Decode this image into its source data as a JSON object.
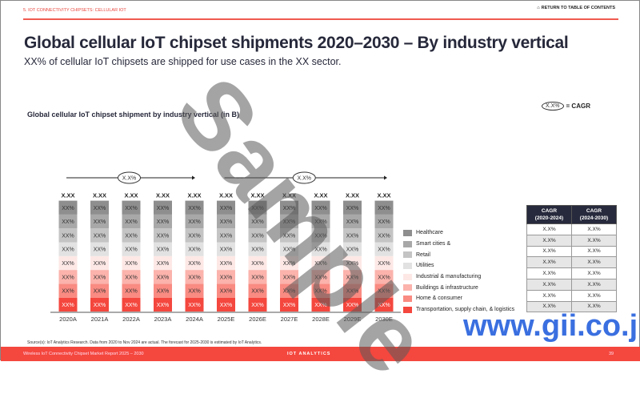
{
  "header": {
    "section": "5. IOT CONNECTIVITY CHIPSETS: CELLULAR IOT",
    "toc": "RETURN TO TABLE OF CONTENTS"
  },
  "title": "Global cellular IoT chipset shipments 2020–2030 – By industry vertical",
  "subtitle": "XX% of cellular IoT chipsets are shipped for use cases in the XX sector.",
  "cagr_key": {
    "oval": "X.X%",
    "label": "= CAGR"
  },
  "chart_data": {
    "type": "bar",
    "stacked": true,
    "title": "Global cellular IoT chipset shipment by industry vertical (in B)",
    "categories": [
      "2020A",
      "2021A",
      "2022A",
      "2023A",
      "2024A",
      "2025E",
      "2026E",
      "2027E",
      "2028E",
      "2029E",
      "2030E"
    ],
    "totals_label": "X.XX",
    "segment_label": "XX%",
    "cagr_arrows": [
      {
        "from": "2020A",
        "to": "2024A",
        "label": "X.X%"
      },
      {
        "from": "2025E",
        "to": "2030E",
        "label": "X.X%"
      }
    ],
    "series": [
      {
        "name": "Transportation, supply chain, & logistics",
        "color": "#f4473e"
      },
      {
        "name": "Home & consumer",
        "color": "#f98b82"
      },
      {
        "name": "Buildings & infrastructure",
        "color": "#fbb3ac"
      },
      {
        "name": "Industrial & manufacturing",
        "color": "#fde8e6"
      },
      {
        "name": "Utilities",
        "color": "#e2e2e2"
      },
      {
        "name": "Retail",
        "color": "#c4c4c4"
      },
      {
        "name": "Smart cities &",
        "color": "#a8a8a8"
      },
      {
        "name": "Healthcare",
        "color": "#8e8e8e"
      }
    ],
    "legend": "right"
  },
  "table": {
    "headers": [
      "CAGR\n(2020-2024)",
      "CAGR\n(2024-2030)"
    ],
    "rows": [
      [
        "X.X%",
        "X.X%"
      ],
      [
        "X.X%",
        "X.X%"
      ],
      [
        "X.X%",
        "X.X%"
      ],
      [
        "X.X%",
        "X.X%"
      ],
      [
        "X.X%",
        "X.X%"
      ],
      [
        "X.X%",
        "X.X%"
      ],
      [
        "X.X%",
        "X.X%"
      ],
      [
        "X.X%",
        "X.X%"
      ]
    ]
  },
  "source": "Source(s): IoT Analytics Research. Data from 2020 to Nov 2024 are actual. The forecast for 2025-2030 is estimated by IoT Analytics.",
  "footer": {
    "report": "Wireless IoT Connectivity Chipset Market Report 2025 – 2030",
    "brand": "IOT ANALYTICS",
    "page": "39"
  },
  "watermark": "Sample",
  "gii": "www.gii.co.jp"
}
